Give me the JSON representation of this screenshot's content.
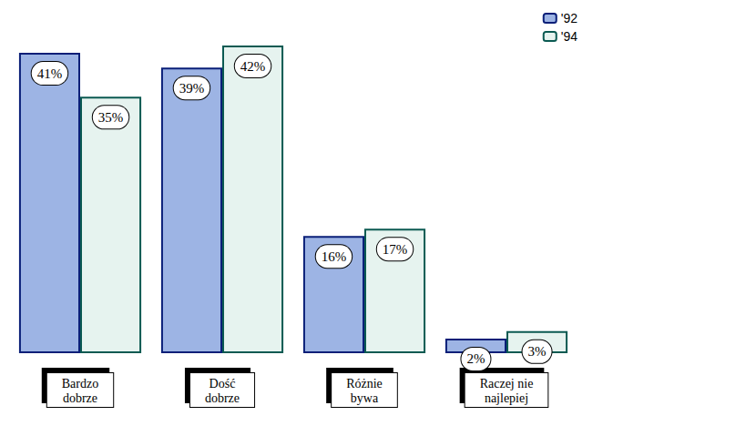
{
  "chart_data": {
    "type": "bar",
    "categories": [
      "Bardzo dobrze",
      "Dość dobrze",
      "Różnie bywa",
      "Raczej nie najlepiej"
    ],
    "series": [
      {
        "name": "'92",
        "color": "#9db4e4",
        "values": [
          41,
          39,
          16,
          2
        ],
        "value_labels": [
          "41%",
          "39%",
          "16%",
          "2%"
        ]
      },
      {
        "name": "'94",
        "color": "#e6f3ef",
        "values": [
          35,
          42,
          17,
          3
        ],
        "value_labels": [
          "35%",
          "42%",
          "17%",
          "3%"
        ]
      }
    ],
    "data_labels": true,
    "tick_labels": "x",
    "grid": false,
    "legend": "top-right"
  }
}
